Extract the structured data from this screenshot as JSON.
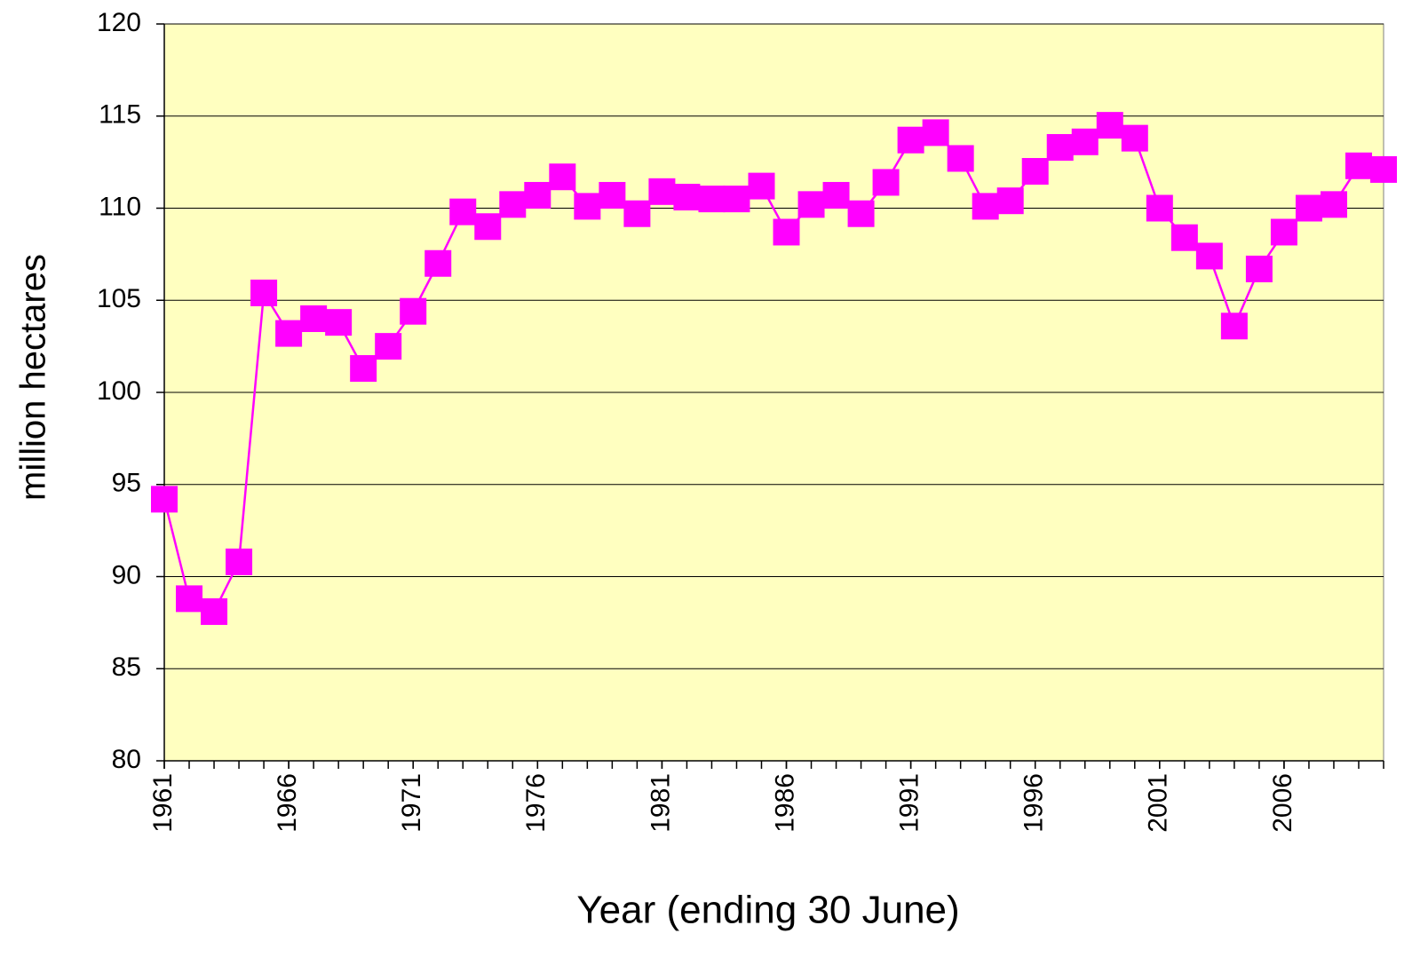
{
  "chart_data": {
    "type": "line",
    "x_label": "Year (ending 30 June)",
    "y_label": "million hectares",
    "x": [
      1961,
      1962,
      1963,
      1964,
      1965,
      1966,
      1967,
      1968,
      1969,
      1970,
      1971,
      1972,
      1973,
      1974,
      1975,
      1976,
      1977,
      1978,
      1979,
      1980,
      1981,
      1982,
      1983,
      1984,
      1985,
      1986,
      1987,
      1988,
      1989,
      1990,
      1991,
      1992,
      1993,
      1994,
      1995,
      1996,
      1997,
      1998,
      1999,
      2000,
      2001,
      2002,
      2003,
      2004,
      2005,
      2006,
      2007,
      2008,
      2009,
      2010
    ],
    "series": [
      {
        "color": "#ff00ff",
        "values": [
          94.2,
          88.8,
          88.1,
          90.8,
          105.4,
          103.2,
          104.0,
          103.8,
          101.3,
          102.5,
          104.4,
          107.0,
          109.8,
          109.0,
          110.2,
          110.7,
          111.7,
          110.1,
          110.7,
          109.7,
          110.9,
          110.6,
          110.5,
          110.5,
          111.2,
          108.7,
          110.2,
          110.7,
          109.7,
          111.4,
          113.7,
          114.1,
          112.7,
          110.1,
          110.4,
          112.0,
          113.3,
          113.6,
          114.5,
          113.8,
          110.0,
          108.4,
          107.4,
          103.6,
          106.7,
          108.7,
          110.0,
          110.2,
          112.3,
          112.1
        ]
      }
    ],
    "xlim": [
      1961,
      2010
    ],
    "xticks": [
      1961,
      1966,
      1971,
      1976,
      1981,
      1986,
      1991,
      1996,
      2001,
      2006
    ],
    "ylim": [
      80,
      120
    ],
    "yticks": [
      80,
      85,
      90,
      95,
      100,
      105,
      110,
      115,
      120
    ],
    "grid": true,
    "plot_background": "#ffffc0"
  }
}
